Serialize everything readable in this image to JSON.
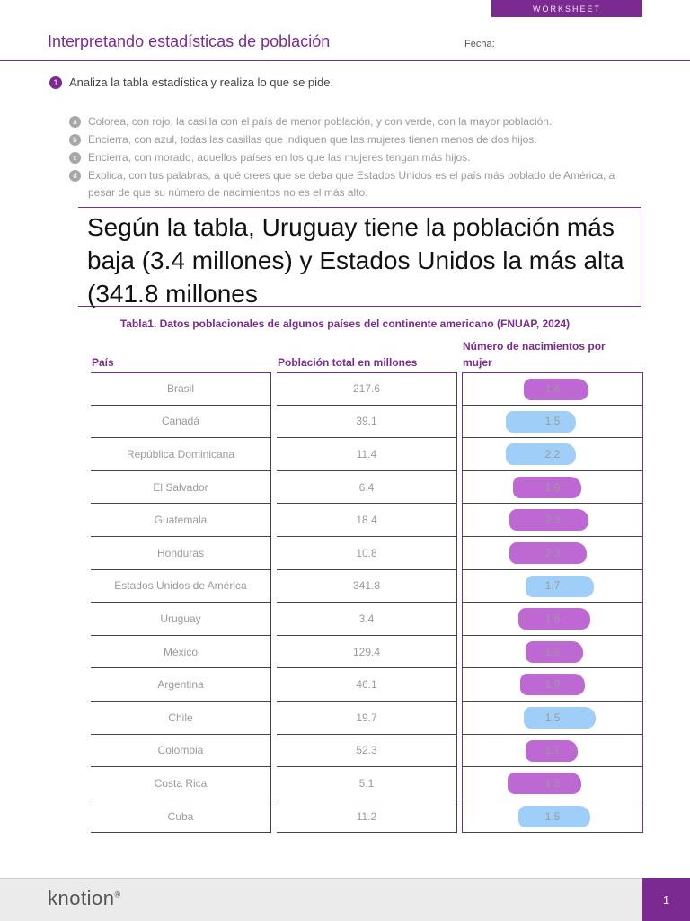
{
  "header": {
    "tag": "WORKSHEET",
    "title": "Interpretando estadísticas de población",
    "date_label": "Fecha:"
  },
  "activity": {
    "number": "1",
    "prompt": "Analiza la tabla estadística y realiza lo que se pide.",
    "items": [
      {
        "letter": "a",
        "text": "Colorea, con rojo, la casilla con el país de menor población, y con verde, con la mayor población."
      },
      {
        "letter": "b",
        "text": "Encierra, con azul, todas las casillas que indiquen que las mujeres tienen menos de dos hijos."
      },
      {
        "letter": "c",
        "text": "Encierra, con morado, aquellos países en los que las mujeres tengan más hijos."
      },
      {
        "letter": "d",
        "text": "Explica, con tus palabras, a qué crees que se deba que Estados Unidos es el país más poblado de América, a pesar de que su número de nacimientos no es el más alto."
      }
    ],
    "answer": "Según la tabla, Uruguay tiene la población más baja (3.4 millones) y Estados Unidos la más alta (341.8 millones"
  },
  "table": {
    "caption": "Tabla1. Datos poblacionales de algunos países del continente americano (FNUAP, 2024)",
    "headers": {
      "country": "País",
      "population": "Población total en millones",
      "births": "Número de nacimientos por mujer"
    },
    "rows": [
      {
        "country": "Brasil",
        "population": "217.6",
        "births": "1.6",
        "mark": "purple"
      },
      {
        "country": "Canadá",
        "population": "39.1",
        "births": "1.5",
        "mark": "blue"
      },
      {
        "country": "República Dominicana",
        "population": "11.4",
        "births": "2.2",
        "mark": "blue"
      },
      {
        "country": "El Salvador",
        "population": "6.4",
        "births": "1.8",
        "mark": "purple"
      },
      {
        "country": "Guatemala",
        "population": "18.4",
        "births": "2.3",
        "mark": "purple"
      },
      {
        "country": "Honduras",
        "population": "10.8",
        "births": "2.3",
        "mark": "purple"
      },
      {
        "country": "Estados Unidos de América",
        "population": "341.8",
        "births": "1.7",
        "mark": "blue"
      },
      {
        "country": "Uruguay",
        "population": "3.4",
        "births": "1.5",
        "mark": "purple"
      },
      {
        "country": "México",
        "population": "129.4",
        "births": "1.8",
        "mark": "purple"
      },
      {
        "country": "Argentina",
        "population": "46.1",
        "births": "1.9",
        "mark": "purple"
      },
      {
        "country": "Chile",
        "population": "19.7",
        "births": "1.5",
        "mark": "blue"
      },
      {
        "country": "Colombia",
        "population": "52.3",
        "births": "1.7",
        "mark": "purple"
      },
      {
        "country": "Costa Rica",
        "population": "5.1",
        "births": "1.5",
        "mark": "purple"
      },
      {
        "country": "Cuba",
        "population": "11.2",
        "births": "1.5",
        "mark": "blue"
      }
    ]
  },
  "footer": {
    "brand": "knotion",
    "registered": "®",
    "page": "1"
  },
  "colors": {
    "accent": "#7a2a90",
    "highlight_purple": "#a836c6",
    "highlight_blue": "#7fbff5"
  }
}
